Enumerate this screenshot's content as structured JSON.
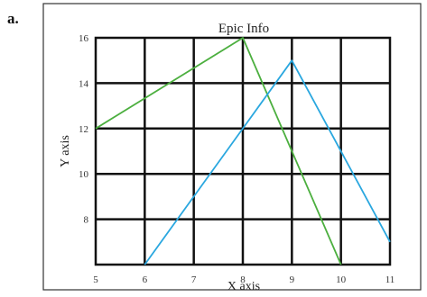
{
  "panel_label": "a.",
  "chart_data": {
    "type": "line",
    "title": "Epic Info",
    "xlabel": "X axis",
    "ylabel": "Y axis",
    "xlim": [
      5,
      11
    ],
    "ylim": [
      6,
      16
    ],
    "x_ticks": [
      "5",
      "6",
      "7",
      "8",
      "9",
      "10",
      "11"
    ],
    "y_ticks": [
      "8",
      "10",
      "12",
      "14",
      "16"
    ],
    "grid": true,
    "series": [
      {
        "color": "#4caf3f",
        "points": [
          [
            5,
            12
          ],
          [
            8,
            16
          ],
          [
            10,
            6
          ]
        ]
      },
      {
        "color": "#2aa7df",
        "points": [
          [
            6,
            6
          ],
          [
            9,
            15
          ],
          [
            11,
            7
          ]
        ]
      }
    ]
  }
}
